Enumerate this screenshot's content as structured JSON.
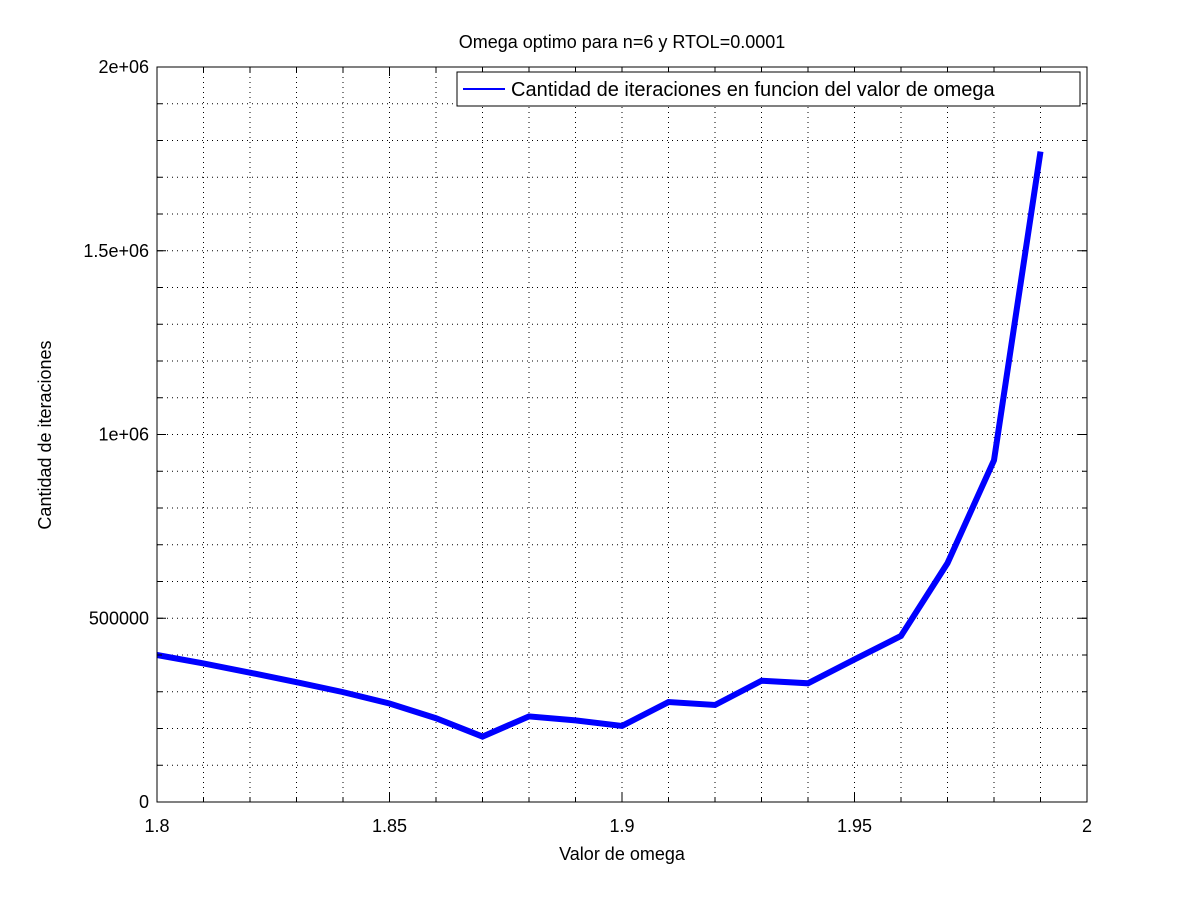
{
  "chart_data": {
    "type": "line",
    "title": "Omega optimo para n=6 y RTOL=0.0001",
    "xlabel": "Valor de omega",
    "ylabel": "Cantidad de iteraciones",
    "xlim": [
      1.8,
      2.0
    ],
    "ylim": [
      0,
      2000000
    ],
    "grid": true,
    "legend_position": "top-right",
    "x_major_ticks": [
      {
        "value": 1.8,
        "label": "1.8"
      },
      {
        "value": 1.85,
        "label": "1.85"
      },
      {
        "value": 1.9,
        "label": "1.9"
      },
      {
        "value": 1.95,
        "label": "1.95"
      },
      {
        "value": 2.0,
        "label": "2"
      }
    ],
    "y_major_ticks": [
      {
        "value": 0,
        "label": "0"
      },
      {
        "value": 500000,
        "label": "500000"
      },
      {
        "value": 1000000,
        "label": "1e+06"
      },
      {
        "value": 1500000,
        "label": "1.5e+06"
      },
      {
        "value": 2000000,
        "label": "2e+06"
      }
    ],
    "x_minor_step": 0.01,
    "y_minor_step": 100000,
    "series": [
      {
        "name": "Cantidad de iteraciones en funcion del valor de omega",
        "color": "#0000ff",
        "x": [
          1.8,
          1.81,
          1.82,
          1.83,
          1.84,
          1.85,
          1.86,
          1.87,
          1.88,
          1.89,
          1.9,
          1.91,
          1.92,
          1.93,
          1.94,
          1.95,
          1.96,
          1.97,
          1.98,
          1.99
        ],
        "y": [
          400000,
          377000,
          352000,
          326000,
          299000,
          268000,
          228000,
          178000,
          233000,
          222000,
          207000,
          272000,
          264000,
          330000,
          323000,
          388000,
          452000,
          650000,
          930000,
          1770000
        ]
      }
    ]
  }
}
